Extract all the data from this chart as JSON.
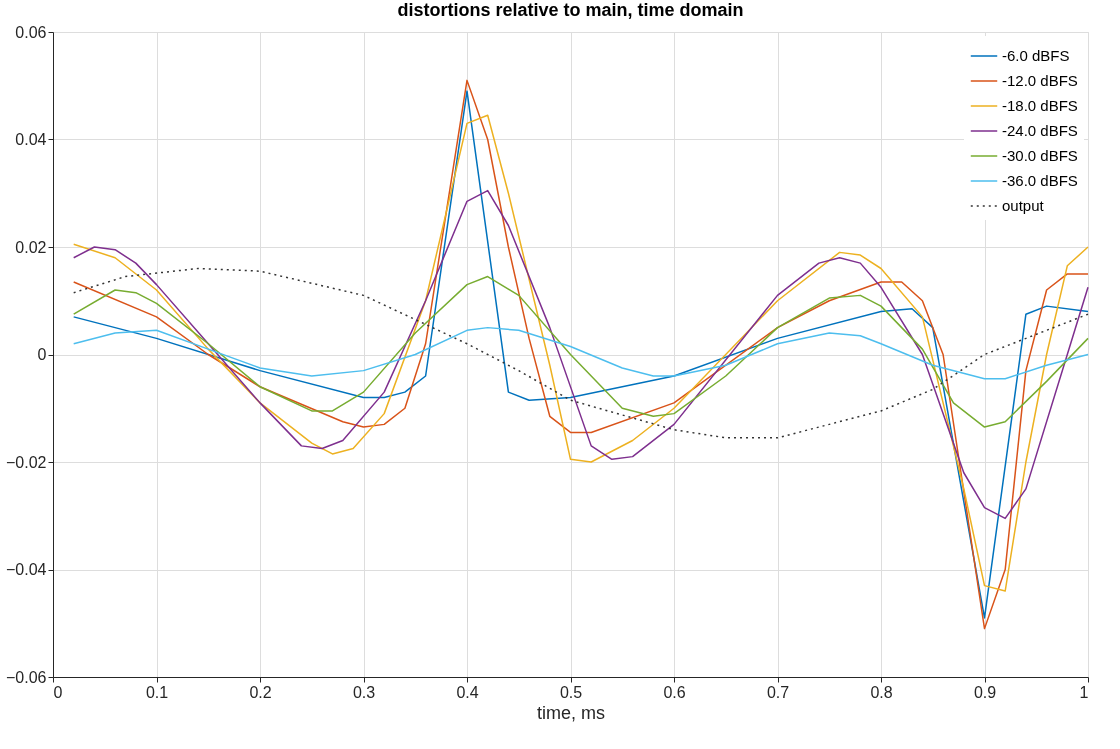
{
  "chart_data": {
    "type": "line",
    "title": "distortions relative to main, time domain",
    "xlabel": "time, ms",
    "xlim": [
      0,
      1
    ],
    "xticks": [
      0,
      0.1,
      0.2,
      0.3,
      0.4,
      0.5,
      0.6,
      0.7,
      0.8,
      0.9,
      1
    ],
    "ylim": [
      -0.06,
      0.06
    ],
    "yticks": [
      -0.06,
      -0.04,
      -0.02,
      0,
      0.02,
      0.04,
      0.06
    ],
    "grid": true,
    "legend": "top right",
    "marker": "none",
    "series": [
      {
        "name": "-6.0 dBFS",
        "color": "#0072bd",
        "x": [
          0.02,
          0.1,
          0.2,
          0.3,
          0.32,
          0.34,
          0.36,
          0.4,
          0.44,
          0.46,
          0.5,
          0.6,
          0.7,
          0.8,
          0.83,
          0.85,
          0.9,
          0.94,
          0.96,
          1.0
        ],
        "values": [
          0.007,
          0.003,
          -0.003,
          -0.008,
          -0.008,
          -0.007,
          -0.004,
          0.049,
          -0.007,
          -0.0085,
          -0.008,
          -0.004,
          0.003,
          0.008,
          0.0085,
          0.005,
          -0.049,
          0.0075,
          0.009,
          0.008
        ]
      },
      {
        "name": "-12.0 dBFS",
        "color": "#d95319",
        "x": [
          0.02,
          0.1,
          0.15,
          0.2,
          0.28,
          0.3,
          0.32,
          0.34,
          0.36,
          0.4,
          0.42,
          0.44,
          0.46,
          0.48,
          0.5,
          0.52,
          0.6,
          0.7,
          0.75,
          0.8,
          0.82,
          0.84,
          0.86,
          0.9,
          0.92,
          0.94,
          0.96,
          0.98,
          1.0
        ],
        "values": [
          0.0135,
          0.007,
          0.0,
          -0.006,
          -0.0125,
          -0.0135,
          -0.013,
          -0.01,
          0.002,
          0.051,
          0.04,
          0.02,
          0.003,
          -0.0115,
          -0.0145,
          -0.0145,
          -0.009,
          0.005,
          0.01,
          0.0135,
          0.0135,
          0.01,
          0.0,
          -0.051,
          -0.04,
          -0.003,
          0.012,
          0.015,
          0.015
        ]
      },
      {
        "name": "-18.0 dBFS",
        "color": "#edb120",
        "x": [
          0.02,
          0.06,
          0.1,
          0.15,
          0.2,
          0.25,
          0.27,
          0.29,
          0.32,
          0.36,
          0.4,
          0.42,
          0.44,
          0.48,
          0.5,
          0.52,
          0.56,
          0.6,
          0.7,
          0.76,
          0.78,
          0.8,
          0.84,
          0.88,
          0.9,
          0.92,
          0.94,
          0.96,
          0.98,
          1.0
        ],
        "values": [
          0.0205,
          0.018,
          0.012,
          0.001,
          -0.009,
          -0.0165,
          -0.0185,
          -0.0175,
          -0.011,
          0.01,
          0.043,
          0.0445,
          0.03,
          -0.002,
          -0.0195,
          -0.02,
          -0.016,
          -0.01,
          0.01,
          0.019,
          0.0185,
          0.016,
          0.007,
          -0.025,
          -0.043,
          -0.044,
          -0.02,
          0.0,
          0.0165,
          0.02
        ]
      },
      {
        "name": "-24.0 dBFS",
        "color": "#7e2f8e",
        "x": [
          0.02,
          0.04,
          0.06,
          0.08,
          0.1,
          0.15,
          0.2,
          0.24,
          0.26,
          0.28,
          0.32,
          0.36,
          0.4,
          0.42,
          0.44,
          0.48,
          0.52,
          0.54,
          0.56,
          0.6,
          0.7,
          0.74,
          0.76,
          0.78,
          0.8,
          0.84,
          0.88,
          0.9,
          0.92,
          0.94,
          0.98,
          1.0
        ],
        "values": [
          0.018,
          0.02,
          0.0195,
          0.017,
          0.013,
          0.002,
          -0.009,
          -0.017,
          -0.0175,
          -0.016,
          -0.007,
          0.01,
          0.0285,
          0.0305,
          0.024,
          0.005,
          -0.017,
          -0.0195,
          -0.019,
          -0.013,
          0.011,
          0.017,
          0.018,
          0.017,
          0.0125,
          0.0,
          -0.022,
          -0.0285,
          -0.0305,
          -0.025,
          0.0,
          0.0125
        ]
      },
      {
        "name": "-30.0 dBFS",
        "color": "#77ac30",
        "x": [
          0.02,
          0.06,
          0.08,
          0.1,
          0.15,
          0.2,
          0.25,
          0.27,
          0.3,
          0.35,
          0.4,
          0.42,
          0.45,
          0.5,
          0.55,
          0.58,
          0.6,
          0.65,
          0.7,
          0.75,
          0.78,
          0.8,
          0.84,
          0.87,
          0.9,
          0.92,
          0.96,
          1.0
        ],
        "values": [
          0.0075,
          0.012,
          0.0115,
          0.0095,
          0.002,
          -0.006,
          -0.0105,
          -0.0105,
          -0.007,
          0.004,
          0.013,
          0.0145,
          0.011,
          0.0,
          -0.01,
          -0.0115,
          -0.011,
          -0.004,
          0.005,
          0.0105,
          0.011,
          0.009,
          0.001,
          -0.009,
          -0.0135,
          -0.0125,
          -0.005,
          0.003
        ]
      },
      {
        "name": "-36.0 dBFS",
        "color": "#4dbeee",
        "x": [
          0.02,
          0.06,
          0.1,
          0.15,
          0.2,
          0.25,
          0.3,
          0.35,
          0.4,
          0.42,
          0.45,
          0.5,
          0.55,
          0.58,
          0.6,
          0.65,
          0.7,
          0.75,
          0.78,
          0.8,
          0.85,
          0.9,
          0.92,
          0.96,
          1.0
        ],
        "values": [
          0.002,
          0.004,
          0.0045,
          0.001,
          -0.0025,
          -0.004,
          -0.003,
          0.0,
          0.0045,
          0.005,
          0.0045,
          0.0015,
          -0.0025,
          -0.004,
          -0.004,
          -0.002,
          0.002,
          0.004,
          0.0035,
          0.002,
          -0.002,
          -0.0045,
          -0.0045,
          -0.002,
          0.0
        ]
      },
      {
        "name": "output",
        "color": "#333333",
        "line_style": "dotted",
        "x": [
          0.02,
          0.07,
          0.14,
          0.2,
          0.3,
          0.4,
          0.45,
          0.5,
          0.6,
          0.65,
          0.7,
          0.8,
          0.85,
          0.9,
          1.0
        ],
        "values": [
          0.0115,
          0.0145,
          0.016,
          0.0155,
          0.011,
          0.002,
          -0.003,
          -0.0085,
          -0.014,
          -0.0155,
          -0.0155,
          -0.0105,
          -0.0065,
          0.0,
          0.0075
        ]
      }
    ]
  }
}
